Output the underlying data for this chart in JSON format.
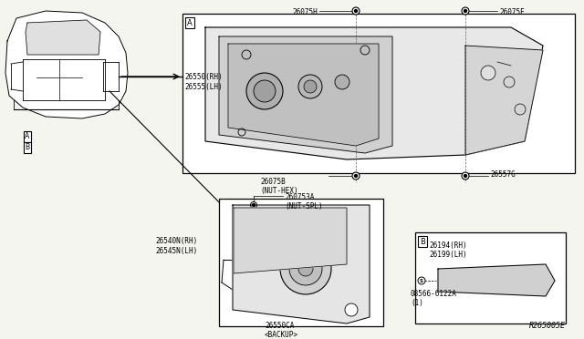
{
  "bg_color": "#f5f5f0",
  "line_color": "#000000",
  "part_labels": {
    "main_lamp_rh_lh": "26550(RH)\n26555(LH)",
    "nut_hex": "26075B\n(NUT-HEX)",
    "screw_bottom": "26557G",
    "screw_top_h": "26075H",
    "screw_top_e": "26075E",
    "backup_lamp_nh_lh": "26540N(RH)\n26545N(LH)",
    "backup_lamp_socket": "26550CA\n<BACKUP>",
    "nut_spl": "260753A\n(NUT-SPL)",
    "inner_lamp_rh": "26194(RH)\n26199(LH)",
    "screw_s": "08566-6122A\n(1)",
    "ref_code": "R265005E"
  },
  "box_labels": {
    "box_a_label": "A",
    "box_b_label": "B",
    "callout_a_label": "A",
    "callout_b_label": "B"
  }
}
